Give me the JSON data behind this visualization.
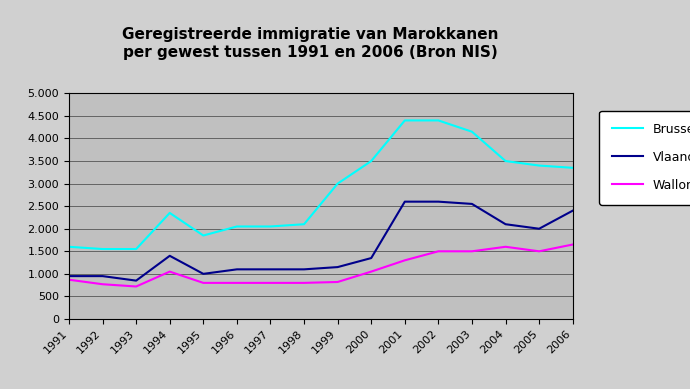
{
  "title": "Geregistreerde immigratie van Marokkanen\nper gewest tussen 1991 en 2006 (Bron NIS)",
  "years": [
    1991,
    1992,
    1993,
    1994,
    1995,
    1996,
    1997,
    1998,
    1999,
    2000,
    2001,
    2002,
    2003,
    2004,
    2005,
    2006
  ],
  "brussel": [
    1600,
    1550,
    1550,
    2350,
    1850,
    2050,
    2050,
    2100,
    3000,
    3500,
    4400,
    4400,
    4150,
    3500,
    3400,
    3350
  ],
  "vlaanderen": [
    950,
    950,
    850,
    1400,
    1000,
    1100,
    1100,
    1100,
    1150,
    1350,
    2600,
    2600,
    2550,
    2100,
    2000,
    2400
  ],
  "wallonie": [
    870,
    770,
    720,
    1050,
    800,
    800,
    800,
    800,
    820,
    1050,
    1300,
    1500,
    1500,
    1600,
    1500,
    1650
  ],
  "brussel_color": "#00FFFF",
  "vlaanderen_color": "#00008B",
  "wallonie_color": "#FF00FF",
  "ylim": [
    0,
    5000
  ],
  "yticks": [
    0,
    500,
    1000,
    1500,
    2000,
    2500,
    3000,
    3500,
    4000,
    4500,
    5000
  ],
  "ytick_labels": [
    "0",
    "500",
    "1.000",
    "1.500",
    "2.000",
    "2.500",
    "3.000",
    "3.500",
    "4.000",
    "4.500",
    "5.000"
  ],
  "legend_labels": [
    "Brussel",
    "Vlaanderen",
    "Wallonië"
  ],
  "title_fontsize": 11,
  "tick_fontsize": 8,
  "legend_fontsize": 9,
  "line_width": 1.5
}
